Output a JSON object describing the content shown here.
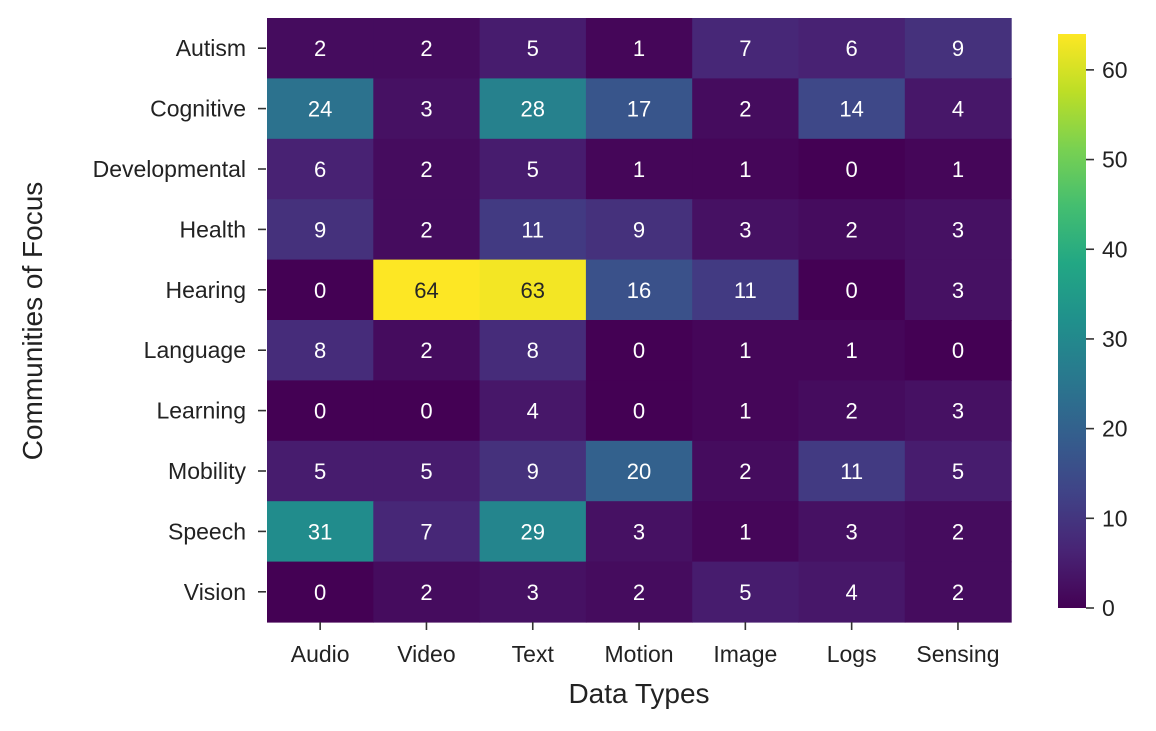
{
  "chart_data": {
    "type": "heatmap",
    "title": "",
    "xlabel": "Data Types",
    "ylabel": "Communities of Focus",
    "x_categories": [
      "Audio",
      "Video",
      "Text",
      "Motion",
      "Image",
      "Logs",
      "Sensing"
    ],
    "y_categories": [
      "Autism",
      "Cognitive",
      "Developmental",
      "Health",
      "Hearing",
      "Language",
      "Learning",
      "Mobility",
      "Speech",
      "Vision"
    ],
    "values": [
      [
        2,
        2,
        5,
        1,
        7,
        6,
        9
      ],
      [
        24,
        3,
        28,
        17,
        2,
        14,
        4
      ],
      [
        6,
        2,
        5,
        1,
        1,
        0,
        1
      ],
      [
        9,
        2,
        11,
        9,
        3,
        2,
        3
      ],
      [
        0,
        64,
        63,
        16,
        11,
        0,
        3
      ],
      [
        8,
        2,
        8,
        0,
        1,
        1,
        0
      ],
      [
        0,
        0,
        4,
        0,
        1,
        2,
        3
      ],
      [
        5,
        5,
        9,
        20,
        2,
        11,
        5
      ],
      [
        31,
        7,
        29,
        3,
        1,
        3,
        2
      ],
      [
        0,
        2,
        3,
        2,
        5,
        4,
        2
      ]
    ],
    "colormap": "viridis",
    "vmin": 0,
    "vmax": 64,
    "colorbar_ticks": [
      0,
      10,
      20,
      30,
      40,
      50,
      60
    ],
    "annotations": true
  }
}
